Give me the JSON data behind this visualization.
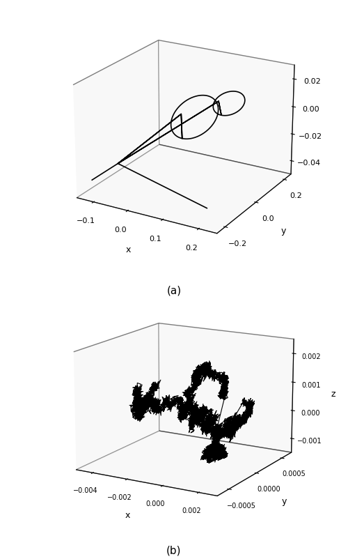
{
  "plot_a": {
    "title": "(a)",
    "xlabel": "x",
    "ylabel": "y",
    "zlabel": "",
    "xlim": [
      -0.15,
      0.25
    ],
    "ylim": [
      -0.25,
      0.25
    ],
    "zlim": [
      -0.05,
      0.03
    ],
    "xticks": [
      -0.1,
      0.0,
      0.1,
      0.2
    ],
    "yticks": [
      -0.2,
      0.0,
      0.2
    ],
    "zticks": [
      -0.04,
      -0.02,
      0.0,
      0.02
    ],
    "line_color": "black",
    "line_width": 1.2,
    "elev": 22,
    "azim": -60
  },
  "plot_b": {
    "title": "(b)",
    "xlabel": "x",
    "ylabel": "y",
    "zlabel": "z",
    "xlim": [
      -0.005,
      0.003
    ],
    "ylim": [
      -0.0007,
      0.0007
    ],
    "zlim": [
      -0.0015,
      0.0025
    ],
    "xticks": [
      -0.004,
      -0.002,
      0.0,
      0.002
    ],
    "yticks": [
      -0.0005,
      0.0,
      0.0005
    ],
    "zticks": [
      -0.001,
      0.0,
      0.001,
      0.002
    ],
    "line_color": "black",
    "line_width": 0.8,
    "elev": 15,
    "azim": -60
  },
  "background_color": "white",
  "fig_width": 5.0,
  "fig_height": 8.03
}
